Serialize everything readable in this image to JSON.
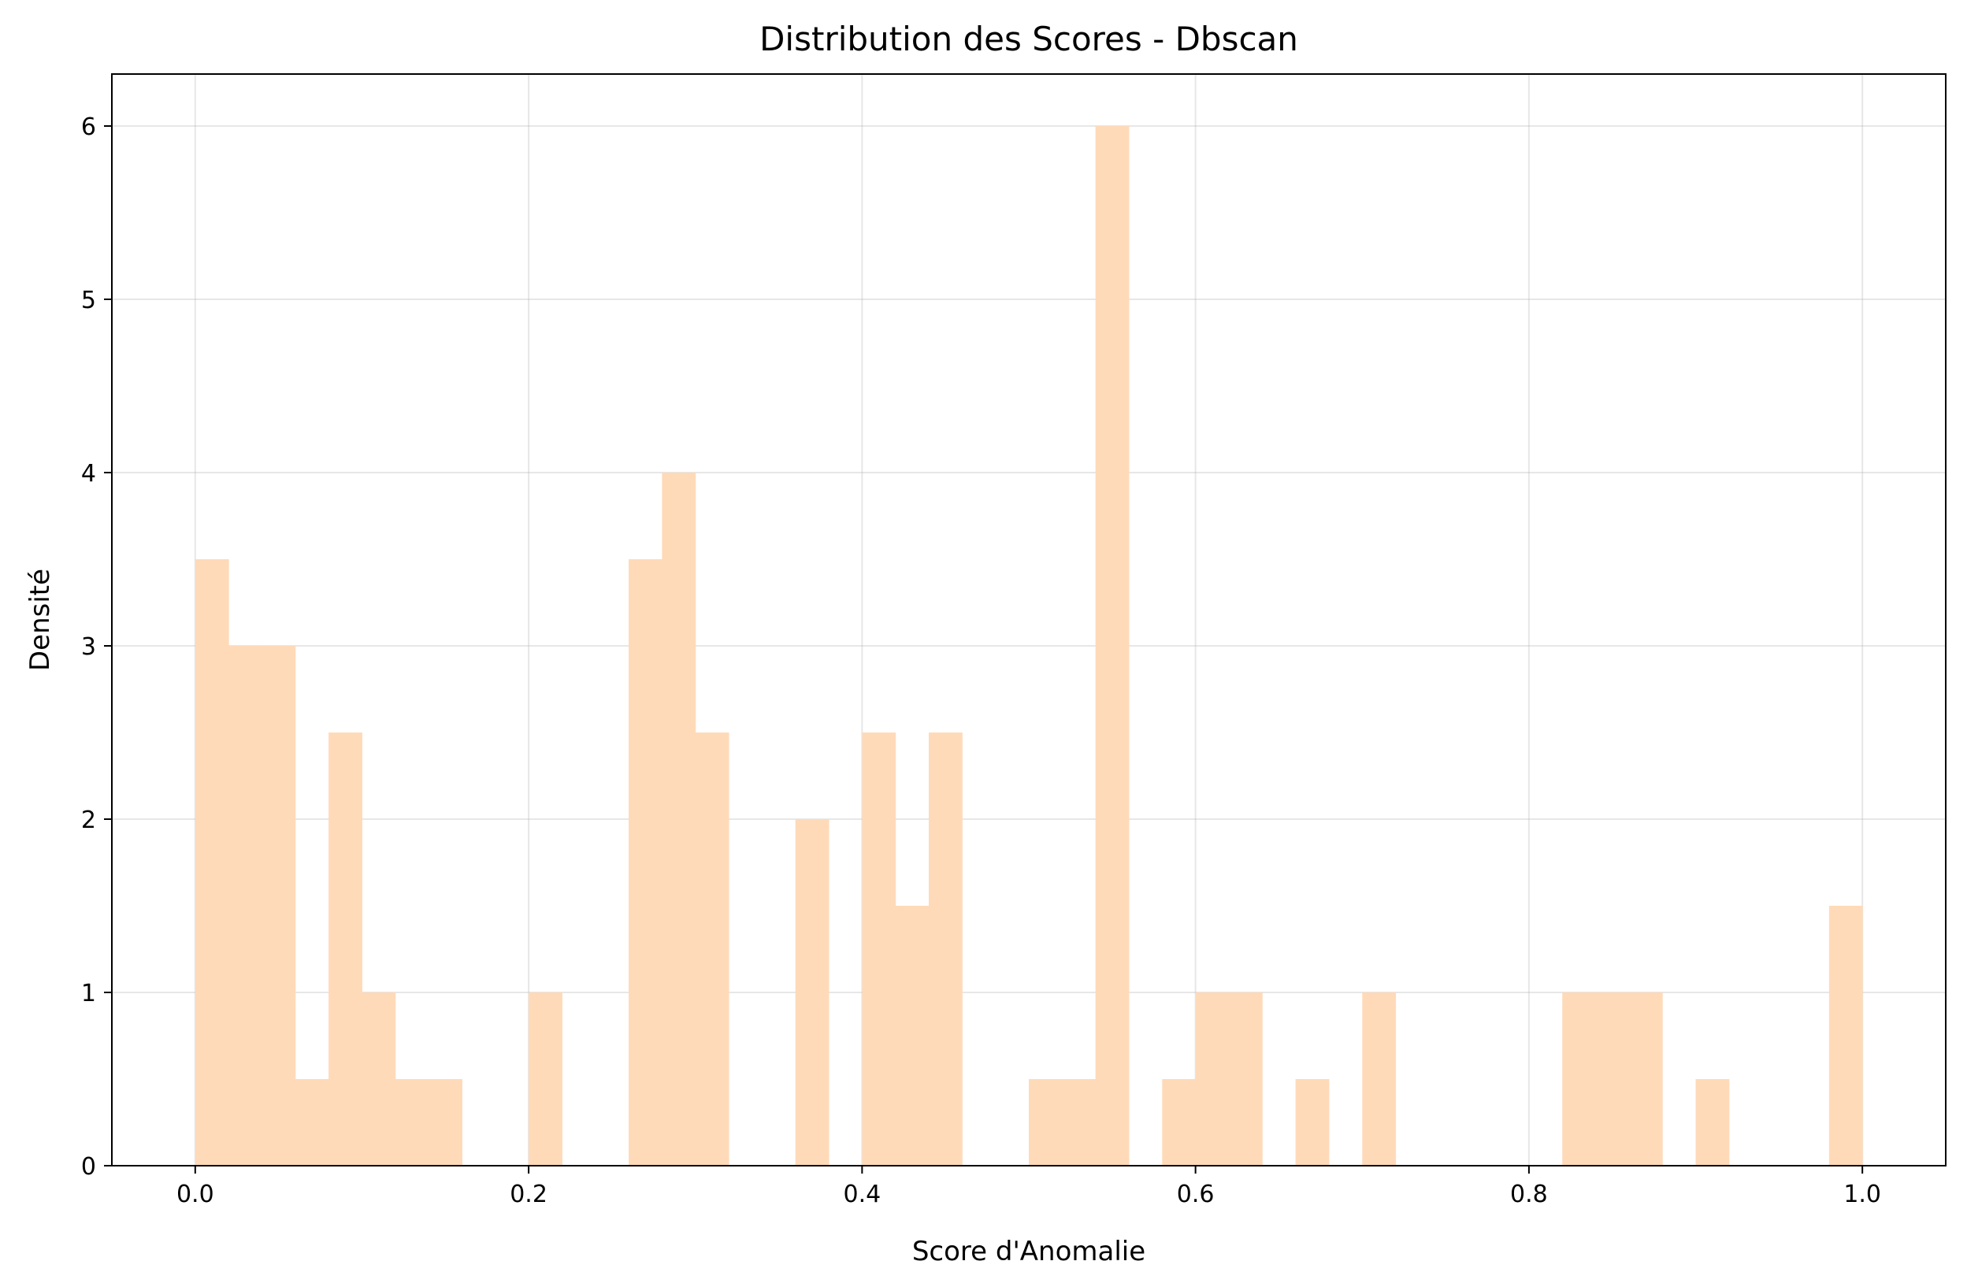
{
  "chart_data": {
    "type": "bar",
    "title": "Distribution des Scores - Dbscan",
    "xlabel": "Score d'Anomalie",
    "ylabel": "Densité",
    "xlim": [
      -0.05,
      1.05
    ],
    "ylim": [
      0,
      6.3
    ],
    "grid": true,
    "bar_color": "#ffdab9",
    "bin_width": 0.02,
    "x_ticks": [
      "0.0",
      "0.2",
      "0.4",
      "0.6",
      "0.8",
      "1.0"
    ],
    "x_tick_values": [
      0.0,
      0.2,
      0.4,
      0.6,
      0.8,
      1.0
    ],
    "y_ticks": [
      "0",
      "1",
      "2",
      "3",
      "4",
      "5",
      "6"
    ],
    "y_tick_values": [
      0,
      1,
      2,
      3,
      4,
      5,
      6
    ],
    "bins": [
      {
        "x": 0.0,
        "value": 3.5
      },
      {
        "x": 0.02,
        "value": 3.0
      },
      {
        "x": 0.04,
        "value": 3.0
      },
      {
        "x": 0.06,
        "value": 0.5
      },
      {
        "x": 0.08,
        "value": 2.5
      },
      {
        "x": 0.1,
        "value": 1.0
      },
      {
        "x": 0.12,
        "value": 0.5
      },
      {
        "x": 0.14,
        "value": 0.5
      },
      {
        "x": 0.2,
        "value": 1.0
      },
      {
        "x": 0.26,
        "value": 3.5
      },
      {
        "x": 0.28,
        "value": 4.0
      },
      {
        "x": 0.3,
        "value": 2.5
      },
      {
        "x": 0.36,
        "value": 2.0
      },
      {
        "x": 0.4,
        "value": 2.5
      },
      {
        "x": 0.42,
        "value": 1.5
      },
      {
        "x": 0.44,
        "value": 2.5
      },
      {
        "x": 0.5,
        "value": 0.5
      },
      {
        "x": 0.52,
        "value": 0.5
      },
      {
        "x": 0.54,
        "value": 6.0
      },
      {
        "x": 0.58,
        "value": 0.5
      },
      {
        "x": 0.6,
        "value": 1.0
      },
      {
        "x": 0.62,
        "value": 1.0
      },
      {
        "x": 0.66,
        "value": 0.5
      },
      {
        "x": 0.7,
        "value": 1.0
      },
      {
        "x": 0.82,
        "value": 1.0
      },
      {
        "x": 0.84,
        "value": 1.0
      },
      {
        "x": 0.86,
        "value": 1.0
      },
      {
        "x": 0.9,
        "value": 0.5
      },
      {
        "x": 0.98,
        "value": 1.5
      }
    ]
  }
}
